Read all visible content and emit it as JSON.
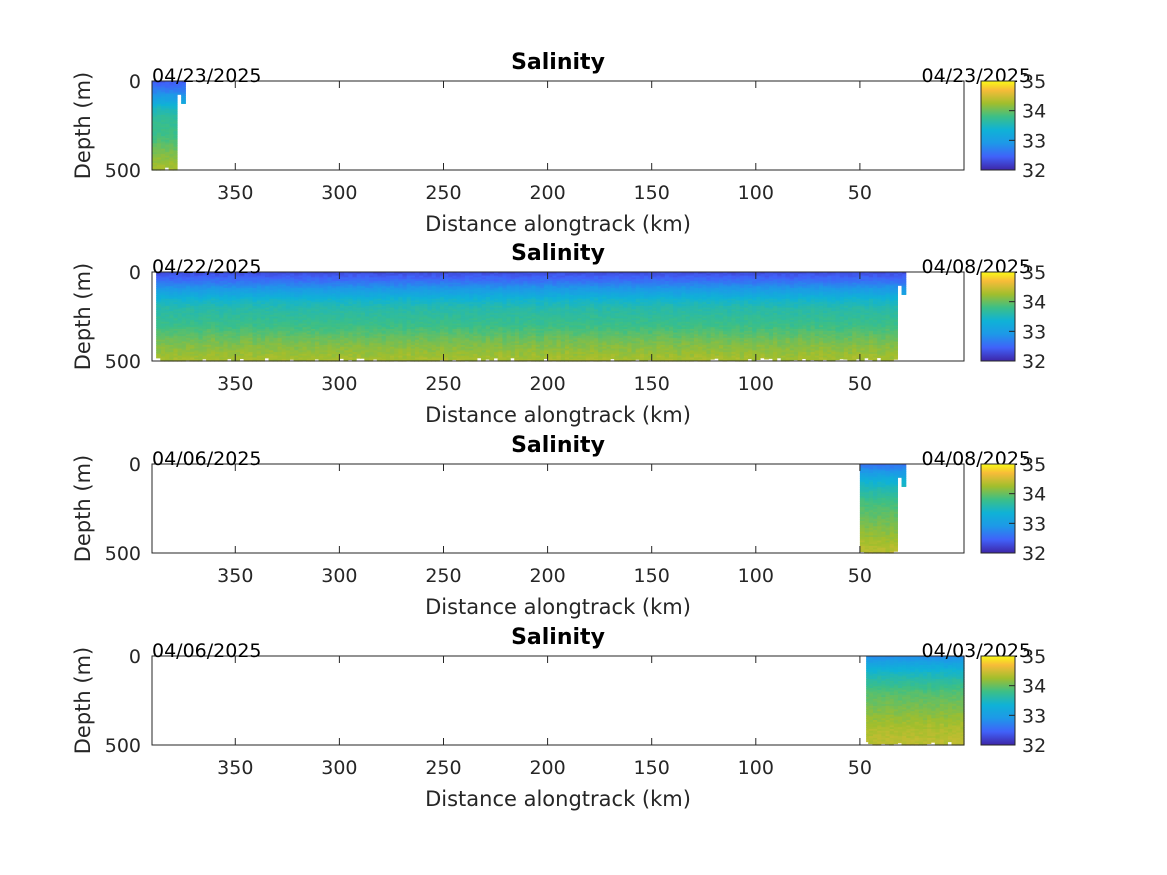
{
  "chart_data": [
    {
      "type": "heatmap",
      "title": "Salinity",
      "xlabel": "Distance alongtrack (km)",
      "ylabel": "Depth (m)",
      "xlim": [
        0,
        390
      ],
      "x_reversed": true,
      "ylim": [
        0,
        500
      ],
      "y_reversed": true,
      "x_ticks": [
        "350",
        "300",
        "250",
        "200",
        "150",
        "100",
        "50"
      ],
      "y_ticks": [
        "0",
        "500"
      ],
      "colorbar": {
        "min": 32,
        "max": 35,
        "ticks": [
          "35",
          "34",
          "33",
          "32"
        ]
      },
      "date_left": "04/23/2025",
      "date_right": "04/23/2025",
      "coverage_km": [
        374,
        390
      ],
      "profile": {
        "depth_m": [
          0,
          50,
          100,
          150,
          200,
          300,
          400,
          500
        ],
        "salinity": [
          32.4,
          32.7,
          33.1,
          33.5,
          33.7,
          33.8,
          34.1,
          34.3
        ]
      }
    },
    {
      "type": "heatmap",
      "title": "Salinity",
      "xlabel": "Distance alongtrack (km)",
      "ylabel": "Depth (m)",
      "xlim": [
        0,
        390
      ],
      "x_reversed": true,
      "ylim": [
        0,
        500
      ],
      "y_reversed": true,
      "x_ticks": [
        "350",
        "300",
        "250",
        "200",
        "150",
        "100",
        "50"
      ],
      "y_ticks": [
        "0",
        "500"
      ],
      "colorbar": {
        "min": 32,
        "max": 35,
        "ticks": [
          "35",
          "34",
          "33",
          "32"
        ]
      },
      "date_left": "04/22/2025",
      "date_right": "04/08/2025",
      "coverage_km": [
        28,
        388
      ],
      "profile": {
        "depth_m": [
          0,
          50,
          100,
          150,
          200,
          300,
          400,
          500
        ],
        "salinity": [
          32.3,
          32.6,
          33.0,
          33.4,
          33.6,
          33.8,
          34.1,
          34.3
        ]
      }
    },
    {
      "type": "heatmap",
      "title": "Salinity",
      "xlabel": "Distance alongtrack (km)",
      "ylabel": "Depth (m)",
      "xlim": [
        0,
        390
      ],
      "x_reversed": true,
      "ylim": [
        0,
        500
      ],
      "y_reversed": true,
      "x_ticks": [
        "350",
        "300",
        "250",
        "200",
        "150",
        "100",
        "50"
      ],
      "y_ticks": [
        "0",
        "500"
      ],
      "colorbar": {
        "min": 32,
        "max": 35,
        "ticks": [
          "35",
          "34",
          "33",
          "32"
        ]
      },
      "date_left": "04/06/2025",
      "date_right": "04/08/2025",
      "coverage_km": [
        28,
        50
      ],
      "profile": {
        "depth_m": [
          0,
          50,
          100,
          150,
          200,
          300,
          400,
          500
        ],
        "salinity": [
          32.6,
          33.0,
          33.4,
          33.6,
          33.8,
          34.0,
          34.2,
          34.4
        ]
      }
    },
    {
      "type": "heatmap",
      "title": "Salinity",
      "xlabel": "Distance alongtrack (km)",
      "ylabel": "Depth (m)",
      "xlim": [
        0,
        390
      ],
      "x_reversed": true,
      "ylim": [
        0,
        500
      ],
      "y_reversed": true,
      "x_ticks": [
        "350",
        "300",
        "250",
        "200",
        "150",
        "100",
        "50"
      ],
      "y_ticks": [
        "0",
        "500"
      ],
      "colorbar": {
        "min": 32,
        "max": 35,
        "ticks": [
          "35",
          "34",
          "33",
          "32"
        ]
      },
      "date_left": "04/06/2025",
      "date_right": "04/03/2025",
      "coverage_km": [
        0,
        47
      ],
      "profile": {
        "depth_m": [
          0,
          50,
          100,
          150,
          200,
          300,
          400,
          500
        ],
        "salinity": [
          32.8,
          33.2,
          33.5,
          33.7,
          33.9,
          34.1,
          34.3,
          34.4
        ]
      }
    }
  ]
}
